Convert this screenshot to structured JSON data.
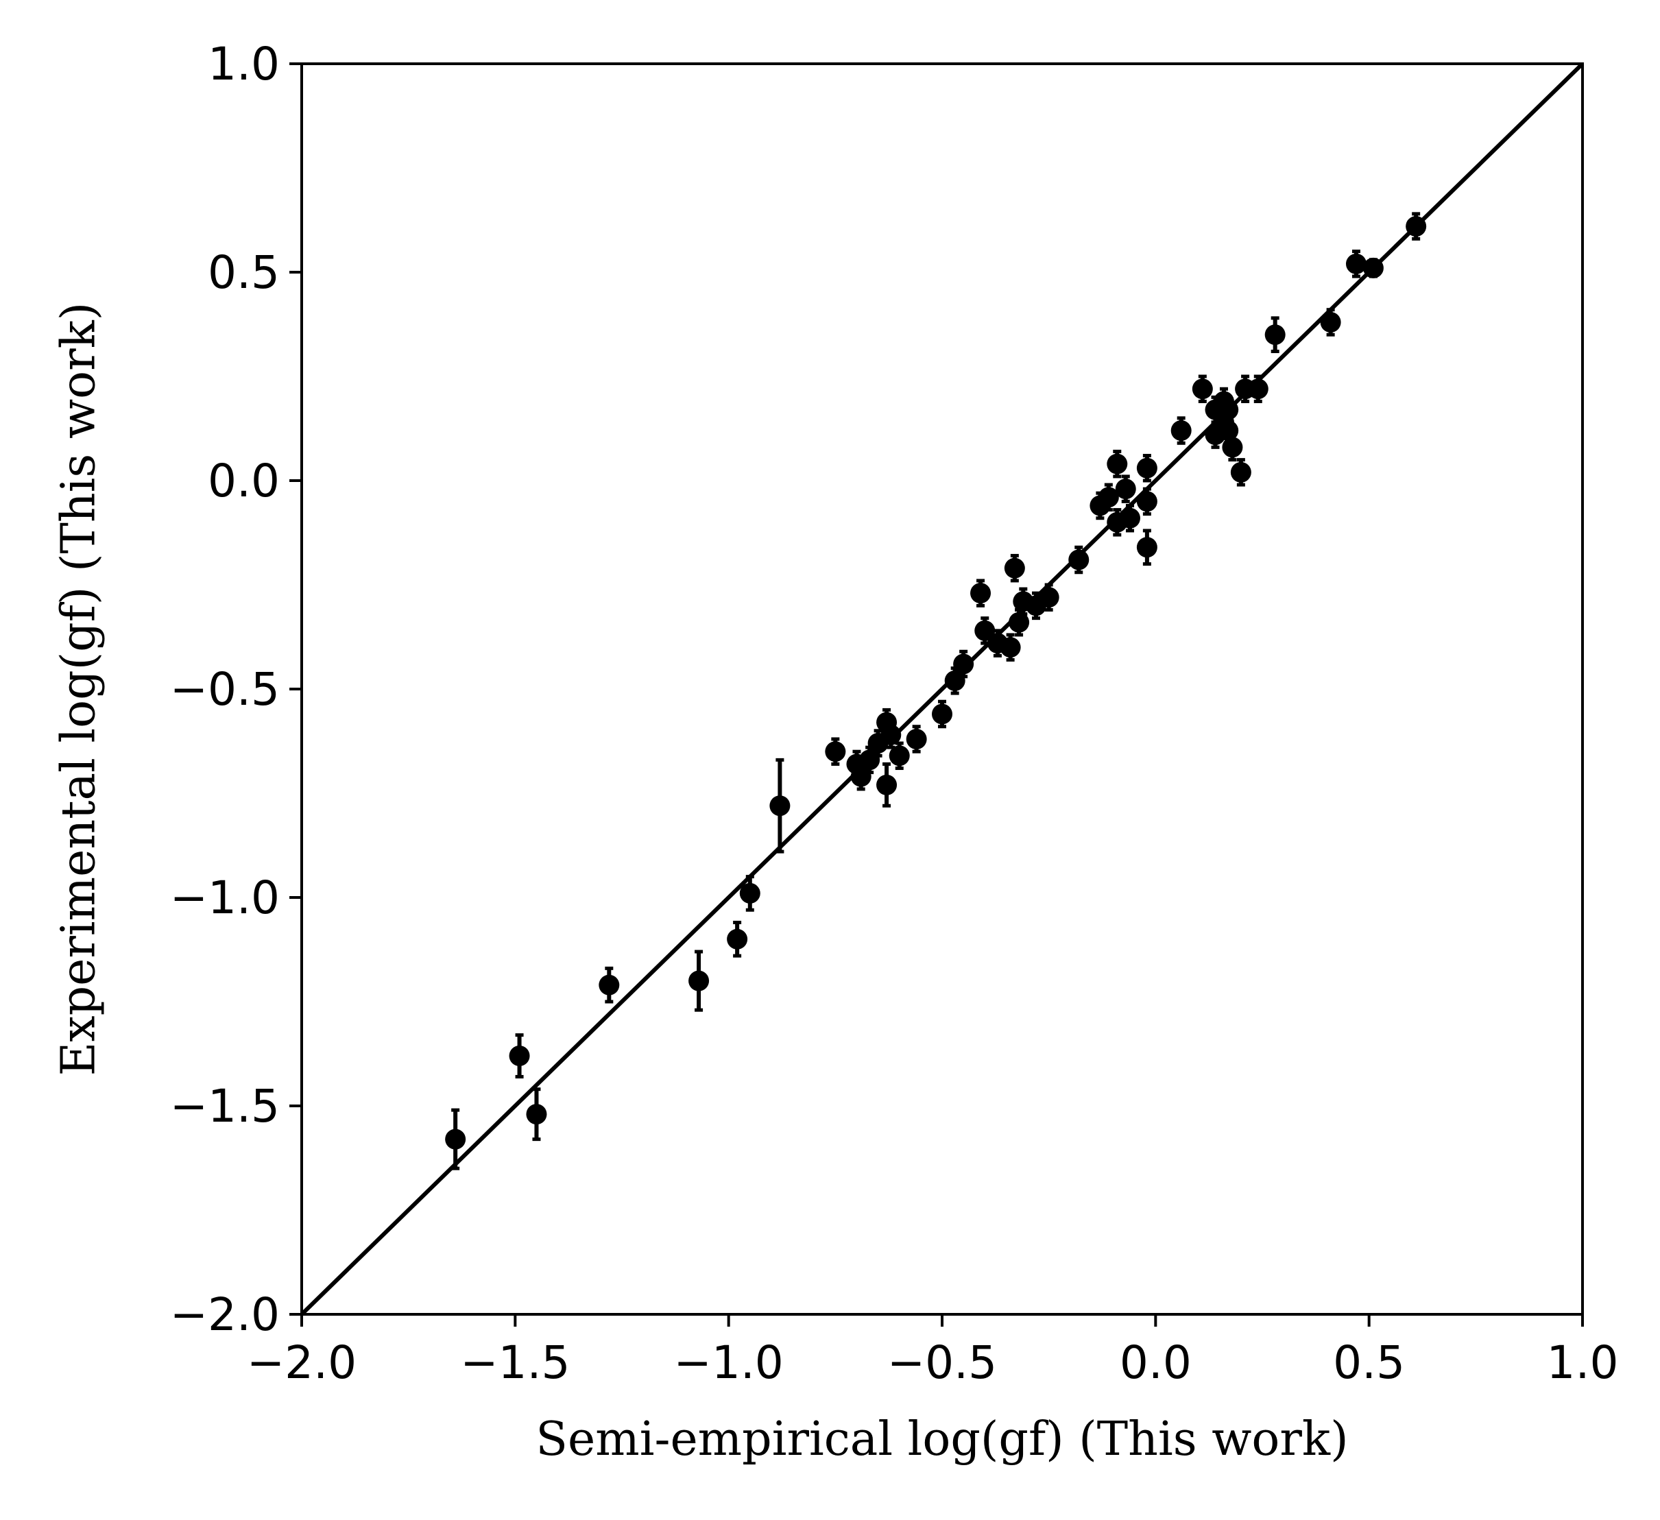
{
  "chart_data": {
    "type": "scatter",
    "xlabel": "Semi-empirical log(gf) (This work)",
    "ylabel": "Experimental log(gf) (This work)",
    "xlim": [
      -2.0,
      1.0
    ],
    "ylim": [
      -2.0,
      1.0
    ],
    "x_ticks": [
      -2.0,
      -1.5,
      -1.0,
      -0.5,
      0.0,
      0.5,
      1.0
    ],
    "y_ticks": [
      -2.0,
      -1.5,
      -1.0,
      -0.5,
      0.0,
      0.5,
      1.0
    ],
    "x_tick_labels": [
      "−2.0",
      "−1.5",
      "−1.0",
      "−0.5",
      "0.0",
      "0.5",
      "1.0"
    ],
    "y_tick_labels": [
      "−2.0",
      "−1.5",
      "−1.0",
      "−0.5",
      "0.0",
      "0.5",
      "1.0"
    ],
    "grid": false,
    "reference_line": {
      "kind": "y = x",
      "from": [
        -2.0,
        -2.0
      ],
      "to": [
        1.0,
        1.0
      ]
    },
    "marker_color": "#000000",
    "line_color": "#000000",
    "points": [
      {
        "x": -1.64,
        "y": -1.58,
        "err": 0.07
      },
      {
        "x": -1.49,
        "y": -1.38,
        "err": 0.05
      },
      {
        "x": -1.45,
        "y": -1.52,
        "err": 0.06
      },
      {
        "x": -1.28,
        "y": -1.21,
        "err": 0.04
      },
      {
        "x": -1.07,
        "y": -1.2,
        "err": 0.07
      },
      {
        "x": -0.98,
        "y": -1.1,
        "err": 0.04
      },
      {
        "x": -0.95,
        "y": -0.99,
        "err": 0.04
      },
      {
        "x": -0.88,
        "y": -0.78,
        "err": 0.11
      },
      {
        "x": -0.75,
        "y": -0.65,
        "err": 0.03
      },
      {
        "x": -0.7,
        "y": -0.68,
        "err": 0.03
      },
      {
        "x": -0.69,
        "y": -0.71,
        "err": 0.03
      },
      {
        "x": -0.67,
        "y": -0.67,
        "err": 0.03
      },
      {
        "x": -0.65,
        "y": -0.63,
        "err": 0.03
      },
      {
        "x": -0.63,
        "y": -0.58,
        "err": 0.03
      },
      {
        "x": -0.63,
        "y": -0.73,
        "err": 0.05
      },
      {
        "x": -0.62,
        "y": -0.61,
        "err": 0.03
      },
      {
        "x": -0.6,
        "y": -0.66,
        "err": 0.03
      },
      {
        "x": -0.56,
        "y": -0.62,
        "err": 0.03
      },
      {
        "x": -0.5,
        "y": -0.56,
        "err": 0.03
      },
      {
        "x": -0.47,
        "y": -0.48,
        "err": 0.03
      },
      {
        "x": -0.45,
        "y": -0.44,
        "err": 0.03
      },
      {
        "x": -0.41,
        "y": -0.27,
        "err": 0.03
      },
      {
        "x": -0.4,
        "y": -0.36,
        "err": 0.03
      },
      {
        "x": -0.37,
        "y": -0.39,
        "err": 0.03
      },
      {
        "x": -0.34,
        "y": -0.4,
        "err": 0.03
      },
      {
        "x": -0.33,
        "y": -0.21,
        "err": 0.03
      },
      {
        "x": -0.32,
        "y": -0.34,
        "err": 0.03
      },
      {
        "x": -0.31,
        "y": -0.29,
        "err": 0.03
      },
      {
        "x": -0.28,
        "y": -0.3,
        "err": 0.03
      },
      {
        "x": -0.25,
        "y": -0.28,
        "err": 0.03
      },
      {
        "x": -0.18,
        "y": -0.19,
        "err": 0.03
      },
      {
        "x": -0.13,
        "y": -0.06,
        "err": 0.03
      },
      {
        "x": -0.11,
        "y": -0.04,
        "err": 0.03
      },
      {
        "x": -0.09,
        "y": 0.04,
        "err": 0.03
      },
      {
        "x": -0.09,
        "y": -0.1,
        "err": 0.03
      },
      {
        "x": -0.07,
        "y": -0.02,
        "err": 0.03
      },
      {
        "x": -0.06,
        "y": -0.09,
        "err": 0.03
      },
      {
        "x": -0.02,
        "y": 0.03,
        "err": 0.03
      },
      {
        "x": -0.02,
        "y": -0.05,
        "err": 0.03
      },
      {
        "x": -0.02,
        "y": -0.16,
        "err": 0.04
      },
      {
        "x": 0.06,
        "y": 0.12,
        "err": 0.03
      },
      {
        "x": 0.11,
        "y": 0.22,
        "err": 0.03
      },
      {
        "x": 0.14,
        "y": 0.17,
        "err": 0.03
      },
      {
        "x": 0.14,
        "y": 0.11,
        "err": 0.03
      },
      {
        "x": 0.16,
        "y": 0.19,
        "err": 0.03
      },
      {
        "x": 0.16,
        "y": 0.14,
        "err": 0.03
      },
      {
        "x": 0.17,
        "y": 0.17,
        "err": 0.03
      },
      {
        "x": 0.17,
        "y": 0.12,
        "err": 0.03
      },
      {
        "x": 0.18,
        "y": 0.08,
        "err": 0.03
      },
      {
        "x": 0.2,
        "y": 0.02,
        "err": 0.03
      },
      {
        "x": 0.21,
        "y": 0.22,
        "err": 0.03
      },
      {
        "x": 0.24,
        "y": 0.22,
        "err": 0.03
      },
      {
        "x": 0.28,
        "y": 0.35,
        "err": 0.04
      },
      {
        "x": 0.41,
        "y": 0.38,
        "err": 0.03
      },
      {
        "x": 0.47,
        "y": 0.52,
        "err": 0.03
      },
      {
        "x": 0.51,
        "y": 0.51,
        "err": 0.02
      },
      {
        "x": 0.61,
        "y": 0.61,
        "err": 0.03
      }
    ]
  }
}
